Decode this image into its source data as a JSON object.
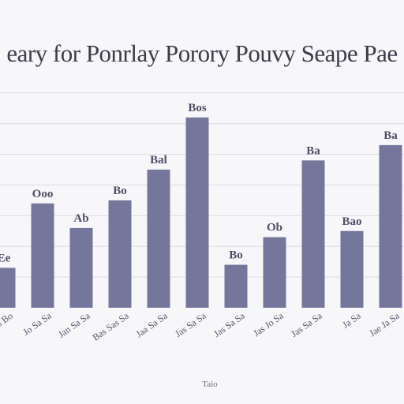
{
  "chart_data": {
    "type": "bar",
    "title": "eary for Ponrlay Porory Pouvy Seape Pae",
    "xlabel": "Taio",
    "ylabel": "",
    "categories": [
      "Jas Bo",
      "Jo Sa Sa",
      "Jan Sa Sa",
      "Bas Sas Sa",
      "Jaa Sa Sa",
      "Jas Sa Sa",
      "Jas Sa Sa",
      "Jas Jo Sa",
      "Jas Sa Sa",
      "Ja Sa",
      "Jae Ja Sa"
    ],
    "values": [
      13,
      34,
      26,
      35,
      45,
      62,
      14,
      23,
      48,
      25,
      53
    ],
    "data_labels": [
      "Ee",
      "Ooo",
      "Ab",
      "Bo",
      "Bal",
      "Bos",
      "Bo",
      "Ob",
      "Ba",
      "Bao",
      "Ba"
    ],
    "ylim": [
      0,
      72
    ],
    "grid": true,
    "colors": {
      "bar": "#75769b",
      "grid": "#dcdce4",
      "background": "#f7f6f8"
    }
  }
}
